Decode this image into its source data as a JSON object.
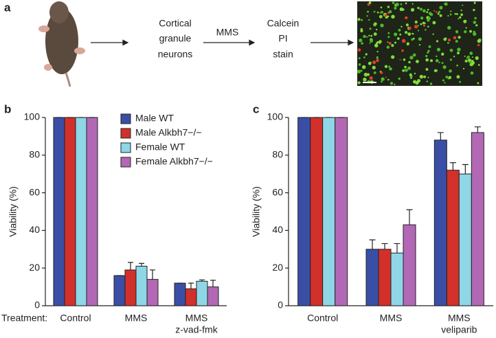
{
  "panels": [
    "a",
    "b",
    "c"
  ],
  "workflow": {
    "steps": [
      [
        "Cortical",
        "granule",
        "neurons"
      ],
      [
        "Calcein",
        "PI",
        "stain"
      ]
    ],
    "arrow_label": "MMS"
  },
  "chart_data": [
    {
      "type": "bar",
      "ylabel": "Viability (%)",
      "xlabel": "Treatment:",
      "categories": [
        [
          "Control"
        ],
        [
          "MMS"
        ],
        [
          "MMS",
          "z-vad-fmk"
        ]
      ],
      "series": [
        {
          "name": "Male WT",
          "color": "#3b4ea6",
          "values": [
            100,
            16,
            12
          ],
          "errors": [
            0,
            0,
            0
          ]
        },
        {
          "name": "Male Alkbh7−/−",
          "color": "#d2302a",
          "values": [
            100,
            19,
            9
          ],
          "errors": [
            0,
            4,
            3
          ]
        },
        {
          "name": "Female WT",
          "color": "#8fd6e6",
          "values": [
            100,
            21,
            13
          ],
          "errors": [
            0,
            1.5,
            0.7
          ]
        },
        {
          "name": "Female Alkbh7−/−",
          "color": "#b268b4",
          "values": [
            100,
            14,
            10
          ],
          "errors": [
            0,
            5,
            3.5
          ]
        }
      ],
      "ylim": [
        0,
        100
      ],
      "yticks": [
        0,
        20,
        40,
        60,
        80,
        100
      ],
      "legend": "upper right"
    },
    {
      "type": "bar",
      "ylabel": "Viability (%)",
      "categories": [
        [
          "Control"
        ],
        [
          "MMS"
        ],
        [
          "MMS",
          "veliparib"
        ]
      ],
      "series": [
        {
          "color": "#3b4ea6",
          "values": [
            100,
            30,
            88
          ],
          "errors": [
            0,
            5,
            4
          ]
        },
        {
          "color": "#d2302a",
          "values": [
            100,
            30,
            72
          ],
          "errors": [
            0,
            3,
            4
          ]
        },
        {
          "color": "#8fd6e6",
          "values": [
            100,
            28,
            70
          ],
          "errors": [
            0,
            5,
            5
          ]
        },
        {
          "color": "#b268b4",
          "values": [
            100,
            43,
            92
          ],
          "errors": [
            0,
            8,
            3
          ]
        }
      ],
      "ylim": [
        0,
        100
      ],
      "yticks": [
        0,
        20,
        40,
        60,
        80,
        100
      ]
    }
  ]
}
